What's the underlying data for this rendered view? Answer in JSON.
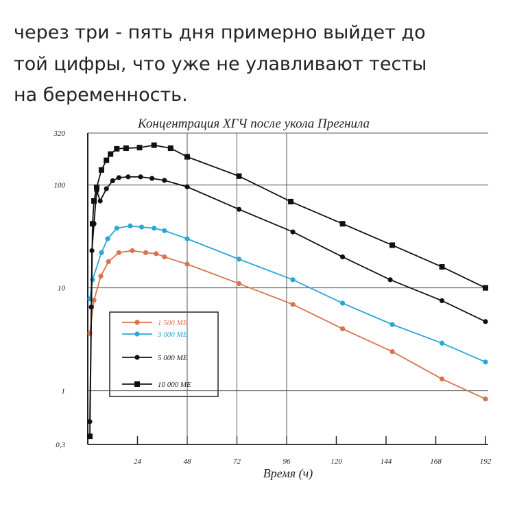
{
  "post_text": [
    "через три - пять дня примерно выйдет до",
    "той цифры, что уже не улавливают тесты",
    "на беременность."
  ],
  "chart_data": {
    "type": "line",
    "title": "Концентрация ХГЧ после укола Прегнила",
    "x_label": "Время (ч)",
    "log_y": true,
    "grid": true,
    "xlim": [
      0,
      192
    ],
    "xticks": [
      24,
      48,
      72,
      96,
      120,
      144,
      168,
      192
    ],
    "ylim": [
      0.3,
      320
    ],
    "yticks": [
      {
        "value": 0.3,
        "label": "0,3"
      },
      1,
      10,
      100,
      320
    ],
    "series": [
      {
        "name": "1 500 МЕ",
        "color": "#d9734e",
        "marker": "circle",
        "x": [
          1,
          3,
          6.3,
          10,
          15,
          21.5,
          28,
          33,
          37,
          48,
          73,
          99,
          123,
          147,
          171,
          192
        ],
        "values": [
          3.6,
          7.6,
          13,
          18,
          22,
          23,
          22,
          21.5,
          20,
          17,
          11,
          6.9,
          4,
          2.4,
          1.3,
          0.83
        ]
      },
      {
        "name": "3 000 МЕ",
        "color": "#2aa6d6",
        "marker": "circle",
        "x": [
          1,
          2.3,
          6.6,
          9.6,
          14,
          20.5,
          26,
          32,
          37,
          48,
          73,
          99,
          123,
          147,
          171,
          192
        ],
        "values": [
          7.8,
          12,
          22,
          30,
          38,
          40,
          39,
          38,
          36,
          30,
          19,
          12,
          7.1,
          4.4,
          2.9,
          1.9
        ]
      },
      {
        "name": "5 000 МЕ",
        "color": "#111111",
        "marker": "circle",
        "x": [
          1,
          1.7,
          2,
          3,
          4.3,
          6,
          9,
          12,
          15,
          19.5,
          25.5,
          31,
          37,
          48,
          73,
          99,
          123,
          146,
          171,
          192
        ],
        "values": [
          0.5,
          6.5,
          23,
          42,
          88,
          70,
          92,
          110,
          118,
          120,
          120,
          116,
          111,
          96,
          58,
          35,
          20,
          12,
          7.5,
          4.7
        ]
      },
      {
        "name": "10 000 МЕ",
        "color": "#111111",
        "marker": "square",
        "x": [
          1,
          2.3,
          3,
          4.3,
          6.6,
          9,
          11,
          14,
          18.5,
          25,
          32,
          40,
          48,
          73,
          98,
          123,
          147,
          171,
          192
        ],
        "values": [
          0.36,
          42,
          70,
          95,
          140,
          174,
          200,
          225,
          228,
          231,
          244,
          228,
          188,
          122,
          69,
          42,
          26,
          16,
          10
        ]
      }
    ]
  }
}
